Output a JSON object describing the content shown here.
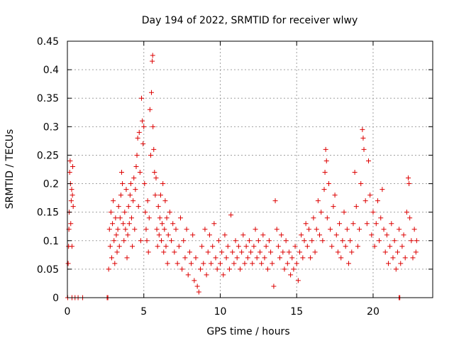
{
  "chart_data": {
    "type": "scatter",
    "title": "Day 194 of 2022, SRMTID for receiver wlwy",
    "xlabel": "GPS time / hours",
    "ylabel": "SRMTID / TECUs",
    "xlim": [
      0,
      23.9
    ],
    "ylim": [
      0,
      0.45
    ],
    "xticks": [
      0,
      5,
      10,
      15,
      20
    ],
    "xtick_labels": [
      "0",
      "5",
      "10",
      "15",
      "20"
    ],
    "yticks": [
      0,
      0.05,
      0.1,
      0.15,
      0.2,
      0.25,
      0.3,
      0.35,
      0.4,
      0.45
    ],
    "ytick_labels": [
      "0",
      "0.05",
      "0.1",
      "0.15",
      "0.2",
      "0.25",
      "0.3",
      "0.35",
      "0.4",
      "0.45"
    ],
    "grid": true,
    "marker": "+",
    "color": "#dd0000",
    "series": [
      {
        "name": "SRMTID",
        "points": [
          [
            0.05,
            0.06
          ],
          [
            0.08,
            0.09
          ],
          [
            0.1,
            0.12
          ],
          [
            0.12,
            0.15
          ],
          [
            0.15,
            0.22
          ],
          [
            0.18,
            0.24
          ],
          [
            0.2,
            0.2
          ],
          [
            0.22,
            0.13
          ],
          [
            0.25,
            0.17
          ],
          [
            0.28,
            0.19
          ],
          [
            0.3,
            0.09
          ],
          [
            0.33,
            0.18
          ],
          [
            0.35,
            0.23
          ],
          [
            0.38,
            0.16
          ],
          [
            0.02,
            0.0
          ],
          [
            0.3,
            0.0
          ],
          [
            0.5,
            0.0
          ],
          [
            0.7,
            0.0
          ],
          [
            1.0,
            0.0
          ],
          [
            2.6,
            0.0
          ],
          [
            2.65,
            0.0
          ],
          [
            21.7,
            0.0
          ],
          [
            21.75,
            0.0
          ],
          [
            2.7,
            0.05
          ],
          [
            2.75,
            0.12
          ],
          [
            2.8,
            0.09
          ],
          [
            2.85,
            0.15
          ],
          [
            2.9,
            0.07
          ],
          [
            2.95,
            0.13
          ],
          [
            3.0,
            0.17
          ],
          [
            3.05,
            0.1
          ],
          [
            3.1,
            0.06
          ],
          [
            3.15,
            0.14
          ],
          [
            3.2,
            0.11
          ],
          [
            3.25,
            0.08
          ],
          [
            3.3,
            0.12
          ],
          [
            3.35,
            0.16
          ],
          [
            3.4,
            0.09
          ],
          [
            3.45,
            0.14
          ],
          [
            3.5,
            0.18
          ],
          [
            3.55,
            0.22
          ],
          [
            3.6,
            0.2
          ],
          [
            3.65,
            0.13
          ],
          [
            3.7,
            0.1
          ],
          [
            3.75,
            0.15
          ],
          [
            3.8,
            0.12
          ],
          [
            3.85,
            0.19
          ],
          [
            3.9,
            0.07
          ],
          [
            3.95,
            0.11
          ],
          [
            4.0,
            0.16
          ],
          [
            4.05,
            0.13
          ],
          [
            4.1,
            0.18
          ],
          [
            4.15,
            0.2
          ],
          [
            4.2,
            0.14
          ],
          [
            4.25,
            0.09
          ],
          [
            4.3,
            0.17
          ],
          [
            4.35,
            0.21
          ],
          [
            4.4,
            0.12
          ],
          [
            4.45,
            0.19
          ],
          [
            4.5,
            0.23
          ],
          [
            4.55,
            0.25
          ],
          [
            4.6,
            0.28
          ],
          [
            4.65,
            0.16
          ],
          [
            4.7,
            0.29
          ],
          [
            4.75,
            0.22
          ],
          [
            4.8,
            0.1
          ],
          [
            4.85,
            0.35
          ],
          [
            4.9,
            0.31
          ],
          [
            4.95,
            0.27
          ],
          [
            5.0,
            0.3
          ],
          [
            5.05,
            0.2
          ],
          [
            5.1,
            0.15
          ],
          [
            5.15,
            0.12
          ],
          [
            5.2,
            0.1
          ],
          [
            5.25,
            0.17
          ],
          [
            5.3,
            0.08
          ],
          [
            5.35,
            0.14
          ],
          [
            5.4,
            0.33
          ],
          [
            5.45,
            0.25
          ],
          [
            5.5,
            0.36
          ],
          [
            5.55,
            0.415
          ],
          [
            5.58,
            0.425
          ],
          [
            5.6,
            0.3
          ],
          [
            5.65,
            0.26
          ],
          [
            5.7,
            0.22
          ],
          [
            5.75,
            0.18
          ],
          [
            5.8,
            0.21
          ],
          [
            5.85,
            0.12
          ],
          [
            5.9,
            0.09
          ],
          [
            5.95,
            0.16
          ],
          [
            6.0,
            0.11
          ],
          [
            6.05,
            0.14
          ],
          [
            6.1,
            0.18
          ],
          [
            6.15,
            0.1
          ],
          [
            6.2,
            0.13
          ],
          [
            6.25,
            0.2
          ],
          [
            6.3,
            0.08
          ],
          [
            6.35,
            0.12
          ],
          [
            6.4,
            0.17
          ],
          [
            6.45,
            0.09
          ],
          [
            6.5,
            0.14
          ],
          [
            6.55,
            0.06
          ],
          [
            6.6,
            0.11
          ],
          [
            6.7,
            0.15
          ],
          [
            6.8,
            0.1
          ],
          [
            6.9,
            0.13
          ],
          [
            7.0,
            0.08
          ],
          [
            7.1,
            0.12
          ],
          [
            7.2,
            0.06
          ],
          [
            7.3,
            0.09
          ],
          [
            7.4,
            0.14
          ],
          [
            7.5,
            0.05
          ],
          [
            7.6,
            0.1
          ],
          [
            7.7,
            0.07
          ],
          [
            7.8,
            0.12
          ],
          [
            7.9,
            0.04
          ],
          [
            8.0,
            0.08
          ],
          [
            8.1,
            0.06
          ],
          [
            8.2,
            0.11
          ],
          [
            8.3,
            0.03
          ],
          [
            8.4,
            0.07
          ],
          [
            8.5,
            0.02
          ],
          [
            8.6,
            0.01
          ],
          [
            8.7,
            0.05
          ],
          [
            8.8,
            0.09
          ],
          [
            8.9,
            0.06
          ],
          [
            9.0,
            0.12
          ],
          [
            9.1,
            0.04
          ],
          [
            9.2,
            0.08
          ],
          [
            9.3,
            0.11
          ],
          [
            9.4,
            0.06
          ],
          [
            9.5,
            0.09
          ],
          [
            9.6,
            0.13
          ],
          [
            9.7,
            0.07
          ],
          [
            9.8,
            0.05
          ],
          [
            9.9,
            0.1
          ],
          [
            10.0,
            0.06
          ],
          [
            10.1,
            0.08
          ],
          [
            10.2,
            0.04
          ],
          [
            10.3,
            0.11
          ],
          [
            10.4,
            0.07
          ],
          [
            10.5,
            0.09
          ],
          [
            10.6,
            0.05
          ],
          [
            10.7,
            0.145
          ],
          [
            10.8,
            0.08
          ],
          [
            10.9,
            0.06
          ],
          [
            11.0,
            0.1
          ],
          [
            11.1,
            0.07
          ],
          [
            11.2,
            0.09
          ],
          [
            11.3,
            0.05
          ],
          [
            11.4,
            0.08
          ],
          [
            11.5,
            0.11
          ],
          [
            11.6,
            0.06
          ],
          [
            11.7,
            0.09
          ],
          [
            11.8,
            0.07
          ],
          [
            11.9,
            0.1
          ],
          [
            12.0,
            0.08
          ],
          [
            12.1,
            0.06
          ],
          [
            12.2,
            0.09
          ],
          [
            12.3,
            0.12
          ],
          [
            12.4,
            0.07
          ],
          [
            12.5,
            0.1
          ],
          [
            12.6,
            0.08
          ],
          [
            12.7,
            0.06
          ],
          [
            12.8,
            0.11
          ],
          [
            12.9,
            0.07
          ],
          [
            13.0,
            0.09
          ],
          [
            13.1,
            0.05
          ],
          [
            13.2,
            0.1
          ],
          [
            13.3,
            0.08
          ],
          [
            13.4,
            0.06
          ],
          [
            13.5,
            0.02
          ],
          [
            13.6,
            0.17
          ],
          [
            13.7,
            0.12
          ],
          [
            13.8,
            0.09
          ],
          [
            13.9,
            0.07
          ],
          [
            14.0,
            0.11
          ],
          [
            14.1,
            0.08
          ],
          [
            14.2,
            0.05
          ],
          [
            14.3,
            0.1
          ],
          [
            14.4,
            0.06
          ],
          [
            14.5,
            0.08
          ],
          [
            14.6,
            0.04
          ],
          [
            14.7,
            0.07
          ],
          [
            14.8,
            0.05
          ],
          [
            14.9,
            0.09
          ],
          [
            15.0,
            0.06
          ],
          [
            15.1,
            0.03
          ],
          [
            15.2,
            0.08
          ],
          [
            15.3,
            0.11
          ],
          [
            15.4,
            0.07
          ],
          [
            15.5,
            0.1
          ],
          [
            15.6,
            0.13
          ],
          [
            15.7,
            0.09
          ],
          [
            15.8,
            0.12
          ],
          [
            15.9,
            0.07
          ],
          [
            16.0,
            0.1
          ],
          [
            16.1,
            0.14
          ],
          [
            16.2,
            0.08
          ],
          [
            16.3,
            0.12
          ],
          [
            16.4,
            0.17
          ],
          [
            16.5,
            0.11
          ],
          [
            16.6,
            0.15
          ],
          [
            16.7,
            0.1
          ],
          [
            16.8,
            0.19
          ],
          [
            16.85,
            0.22
          ],
          [
            16.9,
            0.26
          ],
          [
            16.95,
            0.24
          ],
          [
            17.0,
            0.14
          ],
          [
            17.1,
            0.2
          ],
          [
            17.2,
            0.12
          ],
          [
            17.3,
            0.09
          ],
          [
            17.4,
            0.16
          ],
          [
            17.5,
            0.18
          ],
          [
            17.6,
            0.11
          ],
          [
            17.7,
            0.08
          ],
          [
            17.8,
            0.13
          ],
          [
            17.9,
            0.07
          ],
          [
            18.0,
            0.1
          ],
          [
            18.1,
            0.15
          ],
          [
            18.2,
            0.09
          ],
          [
            18.3,
            0.12
          ],
          [
            18.4,
            0.06
          ],
          [
            18.5,
            0.1
          ],
          [
            18.6,
            0.08
          ],
          [
            18.7,
            0.13
          ],
          [
            18.8,
            0.22
          ],
          [
            18.9,
            0.16
          ],
          [
            19.0,
            0.09
          ],
          [
            19.1,
            0.12
          ],
          [
            19.2,
            0.2
          ],
          [
            19.3,
            0.295
          ],
          [
            19.35,
            0.28
          ],
          [
            19.4,
            0.26
          ],
          [
            19.5,
            0.17
          ],
          [
            19.6,
            0.13
          ],
          [
            19.7,
            0.24
          ],
          [
            19.8,
            0.18
          ],
          [
            19.9,
            0.11
          ],
          [
            20.0,
            0.15
          ],
          [
            20.1,
            0.09
          ],
          [
            20.2,
            0.13
          ],
          [
            20.3,
            0.17
          ],
          [
            20.4,
            0.1
          ],
          [
            20.5,
            0.14
          ],
          [
            20.6,
            0.19
          ],
          [
            20.7,
            0.12
          ],
          [
            20.8,
            0.08
          ],
          [
            20.9,
            0.11
          ],
          [
            21.0,
            0.06
          ],
          [
            21.1,
            0.09
          ],
          [
            21.2,
            0.13
          ],
          [
            21.3,
            0.07
          ],
          [
            21.4,
            0.1
          ],
          [
            21.5,
            0.05
          ],
          [
            21.6,
            0.08
          ],
          [
            21.7,
            0.12
          ],
          [
            21.8,
            0.06
          ],
          [
            21.9,
            0.09
          ],
          [
            22.0,
            0.11
          ],
          [
            22.1,
            0.07
          ],
          [
            22.2,
            0.15
          ],
          [
            22.3,
            0.21
          ],
          [
            22.35,
            0.2
          ],
          [
            22.4,
            0.14
          ],
          [
            22.5,
            0.1
          ],
          [
            22.6,
            0.07
          ],
          [
            22.7,
            0.12
          ],
          [
            22.8,
            0.08
          ],
          [
            22.85,
            0.1
          ]
        ]
      }
    ]
  }
}
